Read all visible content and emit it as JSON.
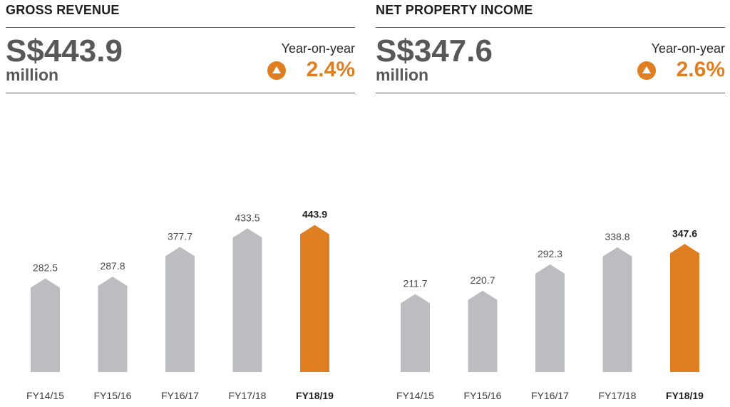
{
  "colors": {
    "bar": "#bcbdc0",
    "highlight": "#e07f21",
    "text": "#4a4a4c"
  },
  "icons": {
    "yoy": "up-triangle-circle-icon"
  },
  "panels": [
    {
      "title": "GROSS REVENUE",
      "value": "S$443.9",
      "unit": "million",
      "yoy_label": "Year-on-year",
      "yoy_value": "2.4%"
    },
    {
      "title": "NET PROPERTY INCOME",
      "value": "S$347.6",
      "unit": "million",
      "yoy_label": "Year-on-year",
      "yoy_value": "2.6%"
    }
  ],
  "chart_data": [
    {
      "type": "bar",
      "title": "GROSS REVENUE",
      "categories": [
        "FY14/15",
        "FY15/16",
        "FY16/17",
        "FY17/18",
        "FY18/19"
      ],
      "values": [
        282.5,
        287.8,
        377.7,
        433.5,
        443.9
      ],
      "value_labels": [
        "282.5",
        "287.8",
        "377.7",
        "433.5",
        "443.9"
      ],
      "highlight_index": 4,
      "ylim": [
        0,
        500
      ],
      "grid": false
    },
    {
      "type": "bar",
      "title": "NET PROPERTY INCOME",
      "categories": [
        "FY14/15",
        "FY15/16",
        "FY16/17",
        "FY17/18",
        "FY18/19"
      ],
      "values": [
        211.7,
        220.7,
        292.3,
        338.8,
        347.6
      ],
      "value_labels": [
        "211.7",
        "220.7",
        "292.3",
        "338.8",
        "347.6"
      ],
      "highlight_index": 4,
      "ylim": [
        0,
        400
      ],
      "grid": false
    }
  ]
}
